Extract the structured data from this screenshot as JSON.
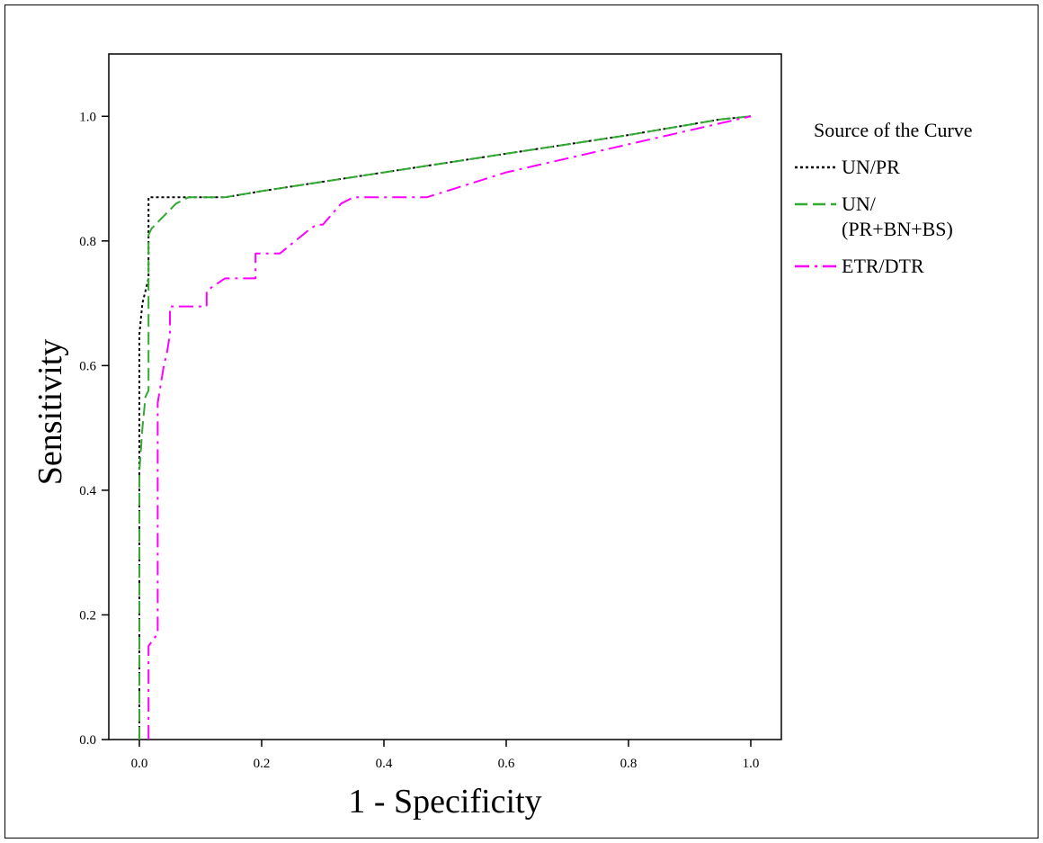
{
  "chart_data": {
    "type": "line",
    "xlabel": "1 - Specificity",
    "ylabel": "Sensitivity",
    "xlim": [
      -0.05,
      1.05
    ],
    "ylim": [
      0.0,
      1.1
    ],
    "xticks": [
      "0.0",
      "0.2",
      "0.4",
      "0.6",
      "0.8",
      "1.0"
    ],
    "yticks": [
      "0.0",
      "0.2",
      "0.4",
      "0.6",
      "0.8",
      "1.0"
    ],
    "grid": false,
    "legend": {
      "title": "Source of the Curve",
      "placement": "right",
      "entries": [
        {
          "lines": [
            "UN/PR"
          ]
        },
        {
          "lines": [
            "UN/",
            "(PR+BN+BS)"
          ]
        },
        {
          "lines": [
            "ETR/DTR"
          ]
        }
      ]
    },
    "series": [
      {
        "name": "UN/PR",
        "color": "#000000",
        "dash": "dotted",
        "x": [
          0.0,
          0.0,
          0.005,
          0.01,
          0.015,
          0.015,
          0.02,
          0.14,
          0.2,
          0.4,
          0.6,
          0.8,
          0.95,
          1.0
        ],
        "y": [
          0.0,
          0.65,
          0.7,
          0.72,
          0.74,
          0.87,
          0.87,
          0.87,
          0.88,
          0.91,
          0.94,
          0.97,
          0.995,
          1.0
        ]
      },
      {
        "name": "UN/ (PR+BN+BS)",
        "color": "#33aa33",
        "dash": "dash",
        "x": [
          0.0,
          0.0,
          0.005,
          0.01,
          0.015,
          0.015,
          0.02,
          0.03,
          0.06,
          0.08,
          0.14,
          0.2,
          0.4,
          0.6,
          0.8,
          0.95,
          1.0
        ],
        "y": [
          0.0,
          0.43,
          0.5,
          0.55,
          0.56,
          0.81,
          0.82,
          0.83,
          0.86,
          0.87,
          0.87,
          0.88,
          0.91,
          0.94,
          0.97,
          0.995,
          1.0
        ]
      },
      {
        "name": "ETR/DTR",
        "color": "#ff00ff",
        "dash": "dashdot",
        "x": [
          0.015,
          0.015,
          0.03,
          0.03,
          0.04,
          0.045,
          0.05,
          0.05,
          0.11,
          0.11,
          0.14,
          0.19,
          0.19,
          0.23,
          0.28,
          0.29,
          0.3,
          0.33,
          0.35,
          0.47,
          0.6,
          0.8,
          1.0
        ],
        "y": [
          0.0,
          0.15,
          0.17,
          0.54,
          0.6,
          0.62,
          0.65,
          0.695,
          0.695,
          0.72,
          0.74,
          0.74,
          0.78,
          0.78,
          0.82,
          0.826,
          0.826,
          0.86,
          0.87,
          0.87,
          0.91,
          0.955,
          1.0
        ]
      }
    ]
  }
}
